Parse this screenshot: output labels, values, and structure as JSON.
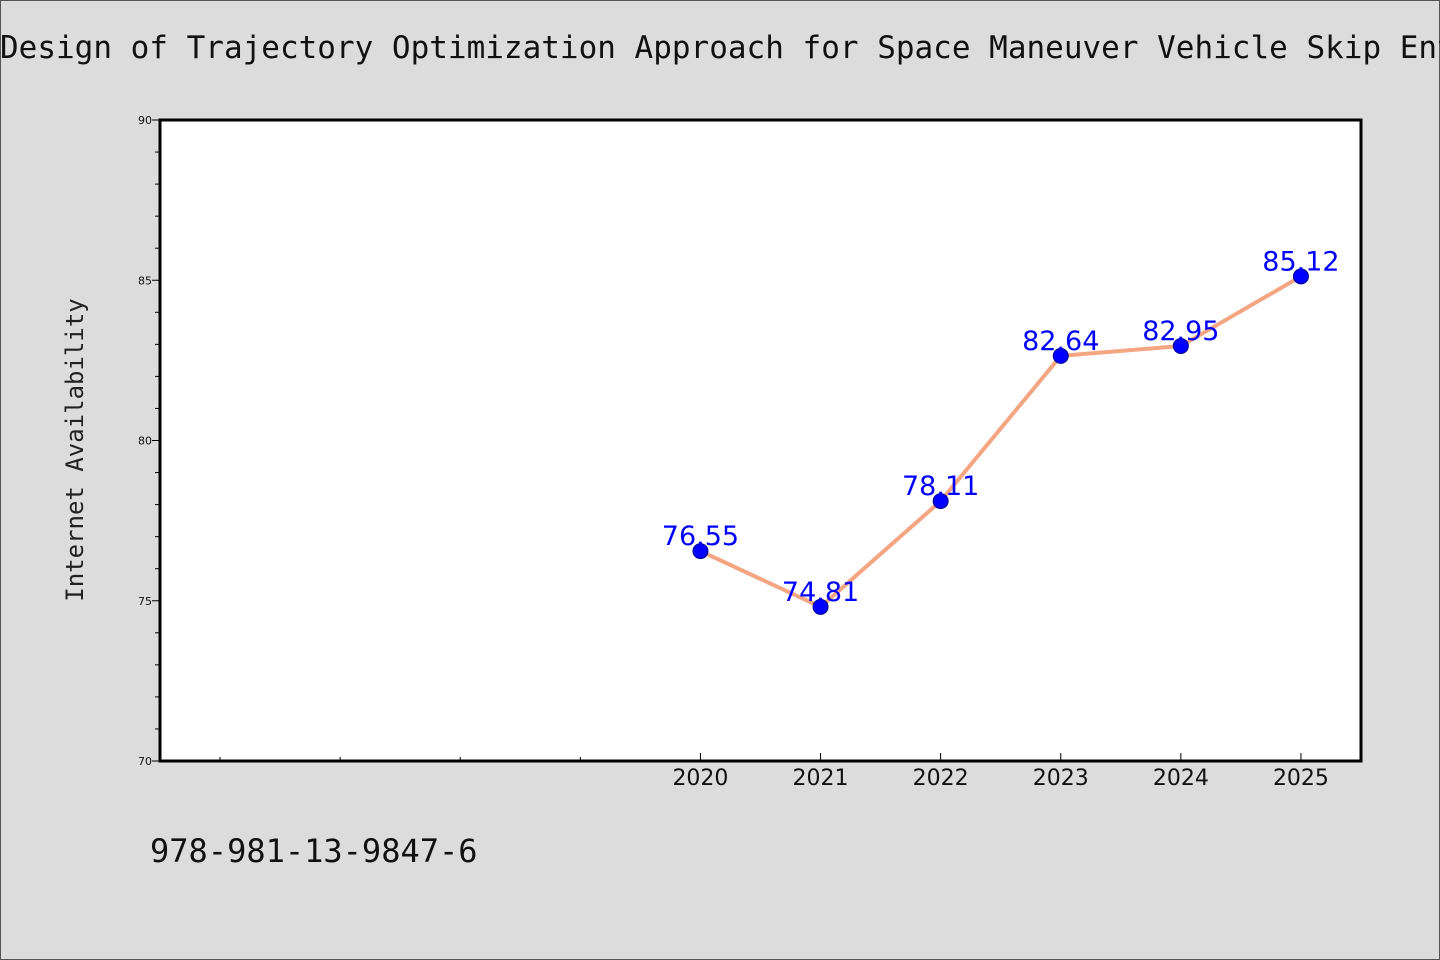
{
  "title": "Design of Trajectory Optimization Approach for Space Maneuver Vehicle Skip Entry",
  "footer_code": "978-981-13-9847-6",
  "colors": {
    "background": "#dcdcdc",
    "plot_background": "#ffffff",
    "line": "#f4a582",
    "marker": "#0000ff",
    "data_label": "#0000ff"
  },
  "chart_data": {
    "type": "line",
    "title": "Design of Trajectory Optimization Approach for Space Maneuver Vehicle Skip Entry",
    "xlabel": "",
    "ylabel": "Internet Availability",
    "x": [
      2020,
      2021,
      2022,
      2023,
      2024,
      2025
    ],
    "xlim": [
      2015.5,
      2025.5
    ],
    "ylim": [
      70,
      90
    ],
    "yticks": [
      70,
      75,
      80,
      85,
      90
    ],
    "series": [
      {
        "values": [
          76.55,
          74.81,
          78.11,
          82.64,
          82.95,
          85.12
        ]
      }
    ],
    "data_labels": [
      "76.55",
      "74.81",
      "78.11",
      "82.64",
      "82.95",
      "85.12"
    ],
    "grid": false,
    "legend": "none"
  }
}
